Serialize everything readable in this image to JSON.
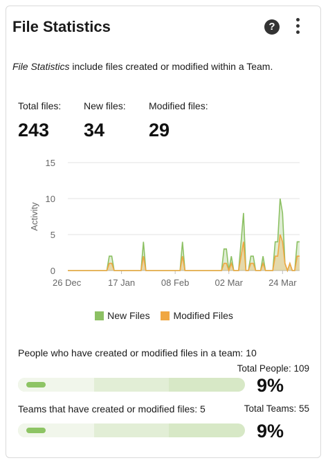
{
  "card": {
    "title": "File Statistics",
    "desc_emph": "File Statistics",
    "desc_rest": " include files created or modified within a Team."
  },
  "stats": {
    "total": {
      "label": "Total files:",
      "value": "243"
    },
    "new": {
      "label": "New files:",
      "value": "34"
    },
    "modified": {
      "label": "Modified files:",
      "value": "29"
    }
  },
  "chart_data": {
    "type": "area",
    "xlabel": "",
    "ylabel": "Activity",
    "ylim": [
      0,
      15
    ],
    "yticks": [
      "0",
      "5",
      "10",
      "15"
    ],
    "xtick_labels": [
      "26 Dec",
      "17 Jan",
      "08 Feb",
      "02 Mar",
      "24 Mar"
    ],
    "x_start": "26 Dec",
    "x_end": "31 Mar",
    "series": [
      {
        "name": "New Files",
        "color": "#8cc063",
        "points": [
          [
            "26 Dec",
            0
          ],
          [
            "11 Jan",
            0
          ],
          [
            "12 Jan",
            2
          ],
          [
            "13 Jan",
            2
          ],
          [
            "14 Jan",
            0
          ],
          [
            "25 Jan",
            0
          ],
          [
            "26 Jan",
            4
          ],
          [
            "27 Jan",
            0
          ],
          [
            "10 Feb",
            0
          ],
          [
            "11 Feb",
            4
          ],
          [
            "12 Feb",
            0
          ],
          [
            "27 Feb",
            0
          ],
          [
            "28 Feb",
            3
          ],
          [
            "01 Mar",
            3
          ],
          [
            "02 Mar",
            0
          ],
          [
            "03 Mar",
            2
          ],
          [
            "04 Mar",
            0
          ],
          [
            "06 Mar",
            0
          ],
          [
            "07 Mar",
            4
          ],
          [
            "08 Mar",
            8
          ],
          [
            "09 Mar",
            0
          ],
          [
            "10 Mar",
            0
          ],
          [
            "11 Mar",
            2
          ],
          [
            "12 Mar",
            2
          ],
          [
            "13 Mar",
            0
          ],
          [
            "15 Mar",
            0
          ],
          [
            "16 Mar",
            2
          ],
          [
            "17 Mar",
            0
          ],
          [
            "20 Mar",
            0
          ],
          [
            "21 Mar",
            4
          ],
          [
            "22 Mar",
            4
          ],
          [
            "23 Mar",
            10
          ],
          [
            "24 Mar",
            8
          ],
          [
            "25 Mar",
            1
          ],
          [
            "26 Mar",
            0
          ],
          [
            "27 Mar",
            1
          ],
          [
            "28 Mar",
            0
          ],
          [
            "29 Mar",
            0
          ],
          [
            "30 Mar",
            4
          ],
          [
            "31 Mar",
            4
          ]
        ]
      },
      {
        "name": "Modified Files",
        "color": "#f0a742",
        "points": [
          [
            "26 Dec",
            0
          ],
          [
            "11 Jan",
            0
          ],
          [
            "12 Jan",
            1
          ],
          [
            "13 Jan",
            1
          ],
          [
            "14 Jan",
            0
          ],
          [
            "25 Jan",
            0
          ],
          [
            "26 Jan",
            2
          ],
          [
            "27 Jan",
            0
          ],
          [
            "10 Feb",
            0
          ],
          [
            "11 Feb",
            2
          ],
          [
            "12 Feb",
            0
          ],
          [
            "27 Feb",
            0
          ],
          [
            "28 Feb",
            1
          ],
          [
            "01 Mar",
            1
          ],
          [
            "02 Mar",
            0
          ],
          [
            "03 Mar",
            1
          ],
          [
            "04 Mar",
            0
          ],
          [
            "06 Mar",
            0
          ],
          [
            "07 Mar",
            2
          ],
          [
            "08 Mar",
            4
          ],
          [
            "09 Mar",
            0
          ],
          [
            "10 Mar",
            0
          ],
          [
            "11 Mar",
            1
          ],
          [
            "12 Mar",
            1
          ],
          [
            "13 Mar",
            0
          ],
          [
            "15 Mar",
            0
          ],
          [
            "16 Mar",
            1
          ],
          [
            "17 Mar",
            0
          ],
          [
            "20 Mar",
            0
          ],
          [
            "21 Mar",
            2
          ],
          [
            "22 Mar",
            2
          ],
          [
            "23 Mar",
            5
          ],
          [
            "24 Mar",
            4
          ],
          [
            "25 Mar",
            1
          ],
          [
            "26 Mar",
            0
          ],
          [
            "27 Mar",
            1
          ],
          [
            "28 Mar",
            0
          ],
          [
            "29 Mar",
            0
          ],
          [
            "30 Mar",
            2
          ],
          [
            "31 Mar",
            2
          ]
        ]
      }
    ],
    "grid": true,
    "legend_position": "bottom-center"
  },
  "people": {
    "label": "People who have created or modified files in a team: 10",
    "total": "Total People: 109",
    "pct": "9%",
    "fraction": 0.09
  },
  "teams": {
    "label": "Teams that have created or modified files: 5",
    "total": "Total Teams: 55",
    "pct": "9%",
    "fraction": 0.09
  }
}
